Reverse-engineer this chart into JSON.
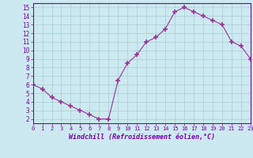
{
  "x": [
    0,
    1,
    2,
    3,
    4,
    5,
    6,
    7,
    8,
    9,
    10,
    11,
    12,
    13,
    14,
    15,
    16,
    17,
    18,
    19,
    20,
    21,
    22,
    23
  ],
  "y": [
    6.0,
    5.5,
    4.5,
    4.0,
    3.5,
    3.0,
    2.5,
    2.0,
    2.0,
    6.5,
    8.5,
    9.5,
    11.0,
    11.5,
    12.5,
    14.5,
    15.0,
    14.5,
    14.0,
    13.5,
    13.0,
    11.0,
    10.5,
    9.0
  ],
  "line_color": "#993399",
  "marker": "+",
  "marker_size": 4,
  "xlabel": "Windchill (Refroidissement éolien,°C)",
  "xlim": [
    0,
    23
  ],
  "ylim": [
    1.5,
    15.5
  ],
  "yticks": [
    2,
    3,
    4,
    5,
    6,
    7,
    8,
    9,
    10,
    11,
    12,
    13,
    14,
    15
  ],
  "xticks": [
    0,
    1,
    2,
    3,
    4,
    5,
    6,
    7,
    8,
    9,
    10,
    11,
    12,
    13,
    14,
    15,
    16,
    17,
    18,
    19,
    20,
    21,
    22,
    23
  ],
  "background_color": "#cce8f0",
  "grid_color": "#aacfcc",
  "axis_color": "#7700aa",
  "font_color": "#7700aa"
}
